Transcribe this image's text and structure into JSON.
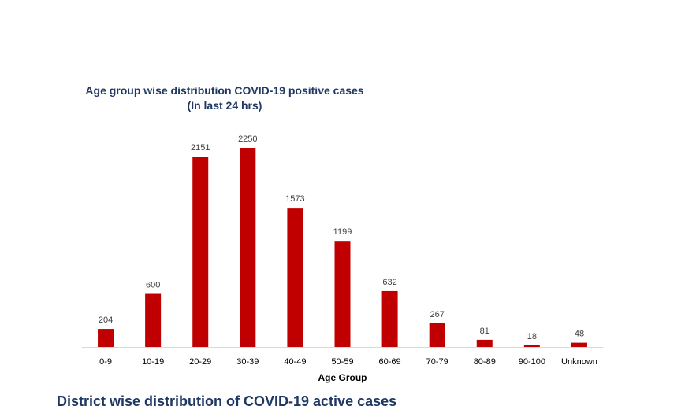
{
  "chart_data": {
    "type": "bar",
    "title": "Age group wise distribution COVID-19 positive cases",
    "subtitle": "(In last 24 hrs)",
    "xlabel": "Age Group",
    "ylabel": "",
    "categories": [
      "0-9",
      "10-19",
      "20-29",
      "30-39",
      "40-49",
      "50-59",
      "60-69",
      "70-79",
      "80-89",
      "90-100",
      "Unknown"
    ],
    "values": [
      204,
      600,
      2151,
      2250,
      1573,
      1199,
      632,
      267,
      81,
      18,
      48
    ],
    "ylim": [
      0,
      2250
    ],
    "grid": false,
    "legend": "none",
    "bar_color": "#c00000",
    "data_labels": true
  },
  "footer": {
    "heading": "District wise distribution of COVID-19 active cases"
  },
  "colors": {
    "title": "#1f3864",
    "bar": "#c00000",
    "axis": "#d9d9d9",
    "label": "#404040"
  }
}
